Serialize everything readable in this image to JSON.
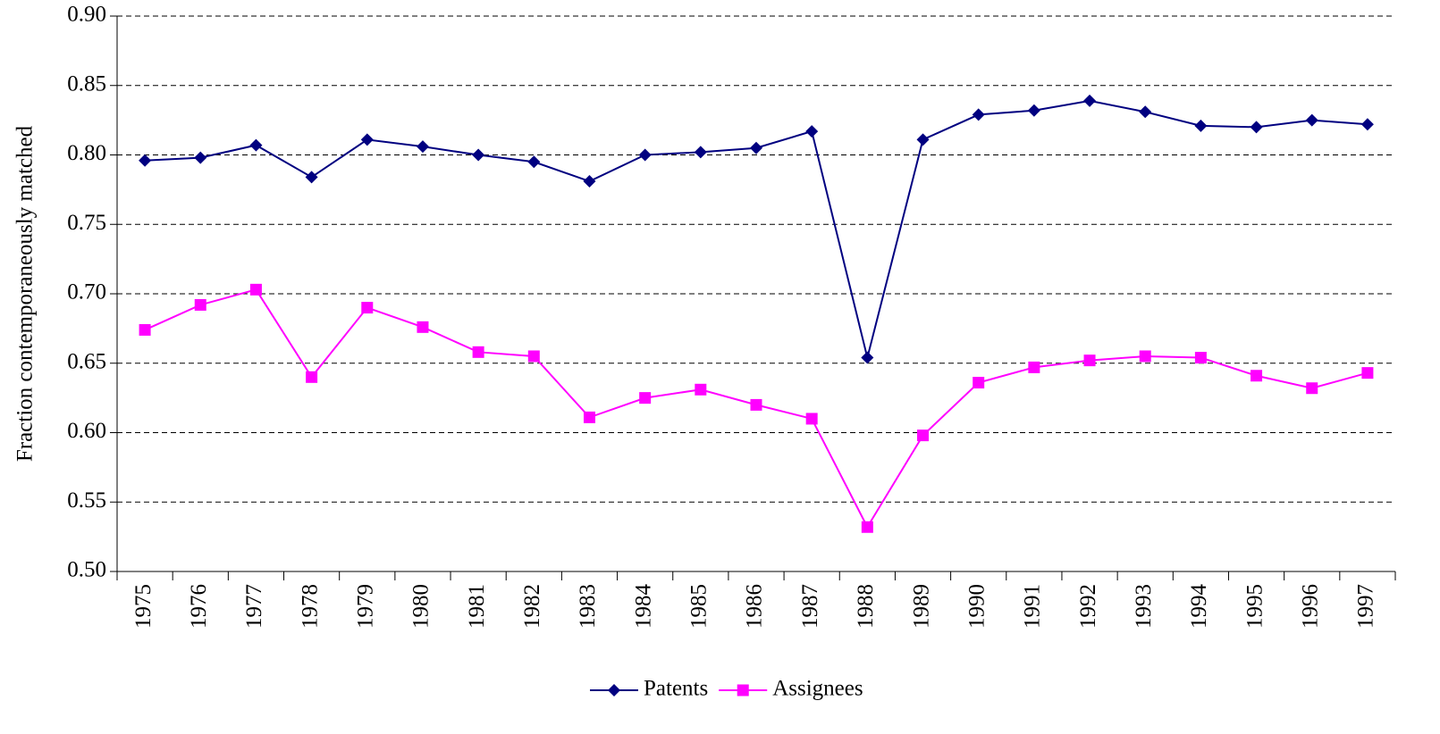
{
  "chart_data": {
    "type": "line",
    "y_label": "Fraction contemporaneously matched",
    "categories": [
      "1975",
      "1976",
      "1977",
      "1978",
      "1979",
      "1980",
      "1981",
      "1982",
      "1983",
      "1984",
      "1985",
      "1986",
      "1987",
      "1988",
      "1989",
      "1990",
      "1991",
      "1992",
      "1993",
      "1994",
      "1995",
      "1996",
      "1997"
    ],
    "series": [
      {
        "name": "Patents",
        "color": "#000080",
        "marker": "diamond",
        "values": [
          0.796,
          0.798,
          0.807,
          0.784,
          0.811,
          0.806,
          0.8,
          0.795,
          0.781,
          0.8,
          0.802,
          0.805,
          0.817,
          0.654,
          0.811,
          0.829,
          0.832,
          0.839,
          0.831,
          0.821,
          0.82,
          0.825,
          0.822
        ]
      },
      {
        "name": "Assignees",
        "color": "#ff00ff",
        "marker": "square",
        "values": [
          0.674,
          0.692,
          0.703,
          0.64,
          0.69,
          0.676,
          0.658,
          0.655,
          0.611,
          0.625,
          0.631,
          0.62,
          0.61,
          0.532,
          0.598,
          0.636,
          0.647,
          0.652,
          0.655,
          0.654,
          0.641,
          0.632,
          0.643
        ]
      }
    ],
    "ylim": [
      0.5,
      0.9
    ],
    "yticks": [
      {
        "value": 0.5,
        "label": "0.50"
      },
      0.55,
      {
        "value": 0.6,
        "label": "0.60"
      },
      0.65,
      {
        "value": 0.7,
        "label": "0.70"
      },
      0.75,
      {
        "value": 0.8,
        "label": "0.80"
      },
      0.85,
      {
        "value": 0.9,
        "label": "0.90"
      }
    ],
    "grid": true,
    "legend": "bottom"
  }
}
